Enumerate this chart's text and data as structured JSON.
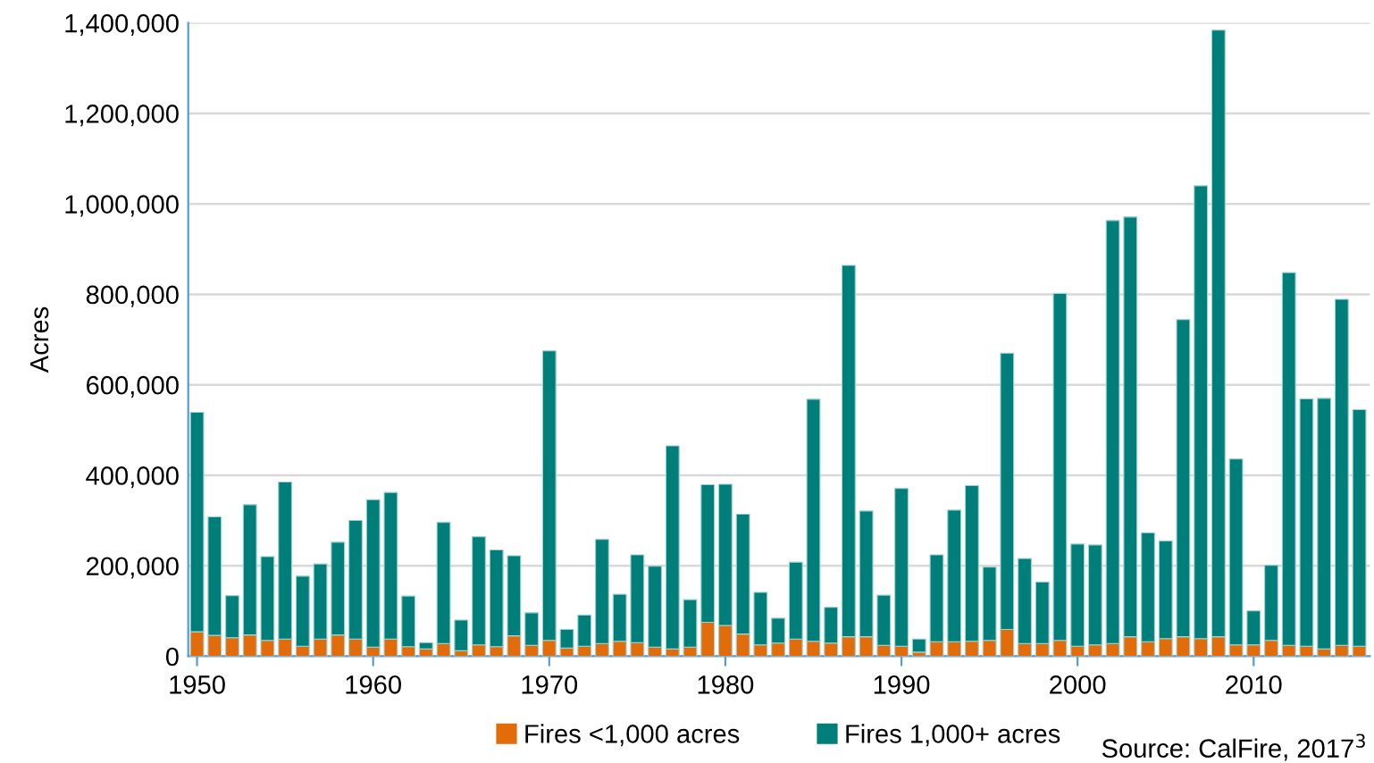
{
  "chart_data": {
    "type": "bar",
    "stacked": true,
    "ylabel": "Acres",
    "x": [
      1950,
      1951,
      1952,
      1953,
      1954,
      1955,
      1956,
      1957,
      1958,
      1959,
      1960,
      1961,
      1962,
      1963,
      1964,
      1965,
      1966,
      1967,
      1968,
      1969,
      1970,
      1971,
      1972,
      1973,
      1974,
      1975,
      1976,
      1977,
      1978,
      1979,
      1980,
      1981,
      1982,
      1983,
      1984,
      1985,
      1986,
      1987,
      1988,
      1989,
      1990,
      1991,
      1992,
      1993,
      1994,
      1995,
      1996,
      1997,
      1998,
      1999,
      2000,
      2001,
      2002,
      2003,
      2004,
      2005,
      2006,
      2007,
      2008,
      2009,
      2010,
      2011,
      2012,
      2013,
      2014,
      2015,
      2016
    ],
    "series": [
      {
        "name": "Fires <1,000 acres",
        "color": "#e36c0a",
        "values": [
          54000,
          46000,
          41000,
          47000,
          35000,
          38000,
          22000,
          38000,
          47000,
          38000,
          20000,
          38000,
          21000,
          16000,
          28000,
          12000,
          25000,
          21000,
          45000,
          24000,
          35000,
          18000,
          22000,
          28000,
          33000,
          30000,
          20000,
          16000,
          20000,
          75000,
          68000,
          49000,
          25000,
          29000,
          38000,
          33000,
          29000,
          43000,
          43000,
          24000,
          22000,
          9000,
          32000,
          32000,
          33000,
          35000,
          59000,
          28000,
          28000,
          35000,
          22000,
          25000,
          28000,
          43000,
          32000,
          39000,
          43000,
          39000,
          43000,
          25000,
          25000,
          35000,
          24000,
          22000,
          16000,
          24000,
          22000
        ]
      },
      {
        "name": "Fires 1,000+ acres",
        "color": "#007f7a",
        "values": [
          485000,
          262000,
          93000,
          288000,
          185000,
          347000,
          155000,
          166000,
          205000,
          262000,
          326000,
          324000,
          112000,
          14000,
          268000,
          68000,
          239000,
          214000,
          177000,
          72000,
          640000,
          41000,
          69000,
          230000,
          104000,
          194000,
          179000,
          449000,
          105000,
          304000,
          312000,
          265000,
          116000,
          55000,
          170000,
          535000,
          79000,
          821000,
          278000,
          111000,
          349000,
          29000,
          192000,
          291000,
          344000,
          162000,
          611000,
          188000,
          136000,
          767000,
          226000,
          221000,
          935000,
          928000,
          241000,
          216000,
          701000,
          1001000,
          1341000,
          411000,
          75000,
          166000,
          824000,
          547000,
          554000,
          765000,
          523000
        ]
      }
    ],
    "xlim": [
      1949.5,
      2016.6
    ],
    "xticks": [
      1950,
      1960,
      1970,
      1980,
      1990,
      2000,
      2010
    ],
    "ylim": [
      0,
      1400000
    ],
    "yticks": [
      0,
      {
        "value": 200000,
        "label": "200,000"
      },
      {
        "value": 400000,
        "label": "400,000"
      },
      {
        "value": 600000,
        "label": "600,000"
      },
      {
        "value": 800000,
        "label": "800,000"
      },
      {
        "value": 1000000,
        "label": "1,000,000"
      },
      {
        "value": 1200000,
        "label": "1,200,000"
      },
      {
        "value": 1400000,
        "label": "1,400,000"
      }
    ],
    "grid": "y",
    "legend": "bottom",
    "annotations": [
      "Source: CalFire, 2017$^{3}$"
    ]
  }
}
